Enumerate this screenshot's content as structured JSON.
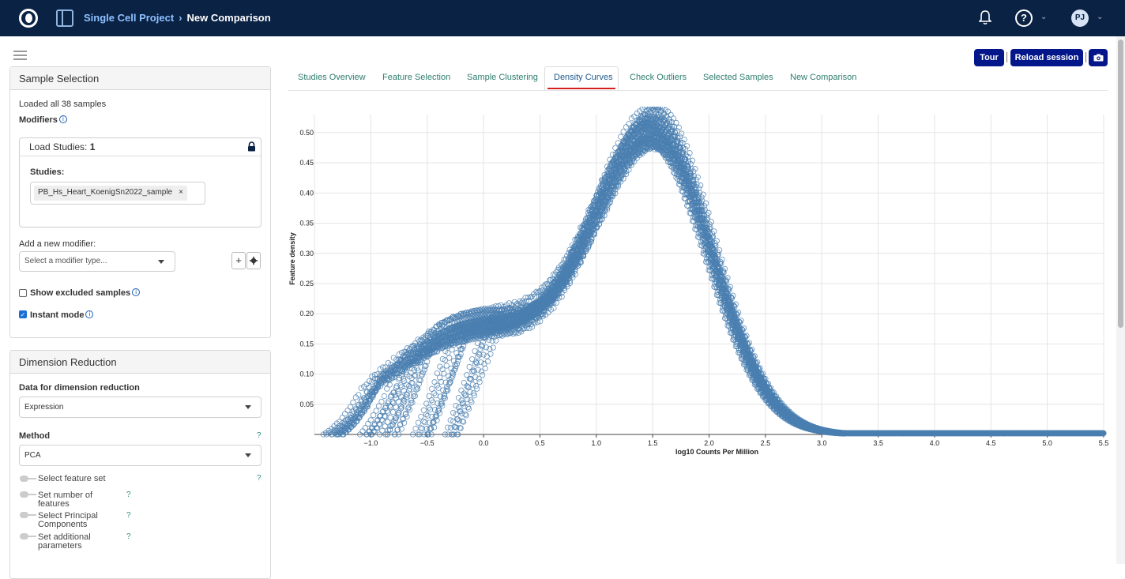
{
  "header": {
    "project": "Single Cell Project",
    "separator": "›",
    "page": "New Comparison",
    "help_label": "?",
    "avatar_initials": "PJ",
    "background": "#0a2244"
  },
  "toolbar": {
    "tour_label": "Tour",
    "reload_label": "Reload session",
    "button_color": "#03178a"
  },
  "tabs": [
    {
      "label": "Studies Overview"
    },
    {
      "label": "Feature Selection"
    },
    {
      "label": "Sample Clustering"
    },
    {
      "label": "Density Curves"
    },
    {
      "label": "Check Outliers"
    },
    {
      "label": "Selected Samples"
    },
    {
      "label": "New Comparison"
    }
  ],
  "sample_selection": {
    "title": "Sample Selection",
    "loaded_text": "Loaded all 38 samples",
    "modifiers_label": "Modifiers",
    "load_studies_label": "Load Studies:",
    "load_studies_count": "1",
    "studies_label": "Studies:",
    "study_chip": "PB_Hs_Heart_KoenigSn2022_sample",
    "chip_remove": "×",
    "add_modifier_label": "Add a new modifier:",
    "modifier_placeholder": "Select a modifier type...",
    "add_button": "+",
    "show_excluded_label": "Show excluded samples",
    "instant_mode_label": "Instant mode",
    "instant_mode_checked": true
  },
  "dimension_reduction": {
    "title": "Dimension Reduction",
    "data_label": "Data for dimension reduction",
    "data_value": "Expression",
    "method_label": "Method",
    "method_value": "PCA",
    "steps": [
      {
        "label": "Select feature set"
      },
      {
        "label": "Set number of features"
      },
      {
        "label": "Select Principal Components"
      },
      {
        "label": "Set additional parameters"
      }
    ],
    "help_mark": "?"
  },
  "chart_data": {
    "type": "scatter",
    "xlabel": "log10 Counts Per Million",
    "ylabel": "Feature density",
    "xlim": [
      -1.5,
      5.5
    ],
    "ylim": [
      0,
      0.53
    ],
    "xticks": [
      "−1.0",
      "−0.5",
      "0.0",
      "0.5",
      "1.0",
      "1.5",
      "2.0",
      "2.5",
      "3.0",
      "3.5",
      "4.0",
      "4.5",
      "5.0",
      "5.5"
    ],
    "xtick_values": [
      -1.0,
      -0.5,
      0.0,
      0.5,
      1.0,
      1.5,
      2.0,
      2.5,
      3.0,
      3.5,
      4.0,
      4.5,
      5.0,
      5.5
    ],
    "yticks": [
      "0.05",
      "0.10",
      "0.15",
      "0.20",
      "0.25",
      "0.30",
      "0.35",
      "0.40",
      "0.45",
      "0.50"
    ],
    "ytick_values": [
      0.05,
      0.1,
      0.15,
      0.2,
      0.25,
      0.3,
      0.35,
      0.4,
      0.45,
      0.5
    ],
    "marker_color": "#4a7fb0",
    "grid": true,
    "series_count": 38,
    "peak_x": 1.5,
    "peak_y_range": [
      0.45,
      0.53
    ]
  }
}
